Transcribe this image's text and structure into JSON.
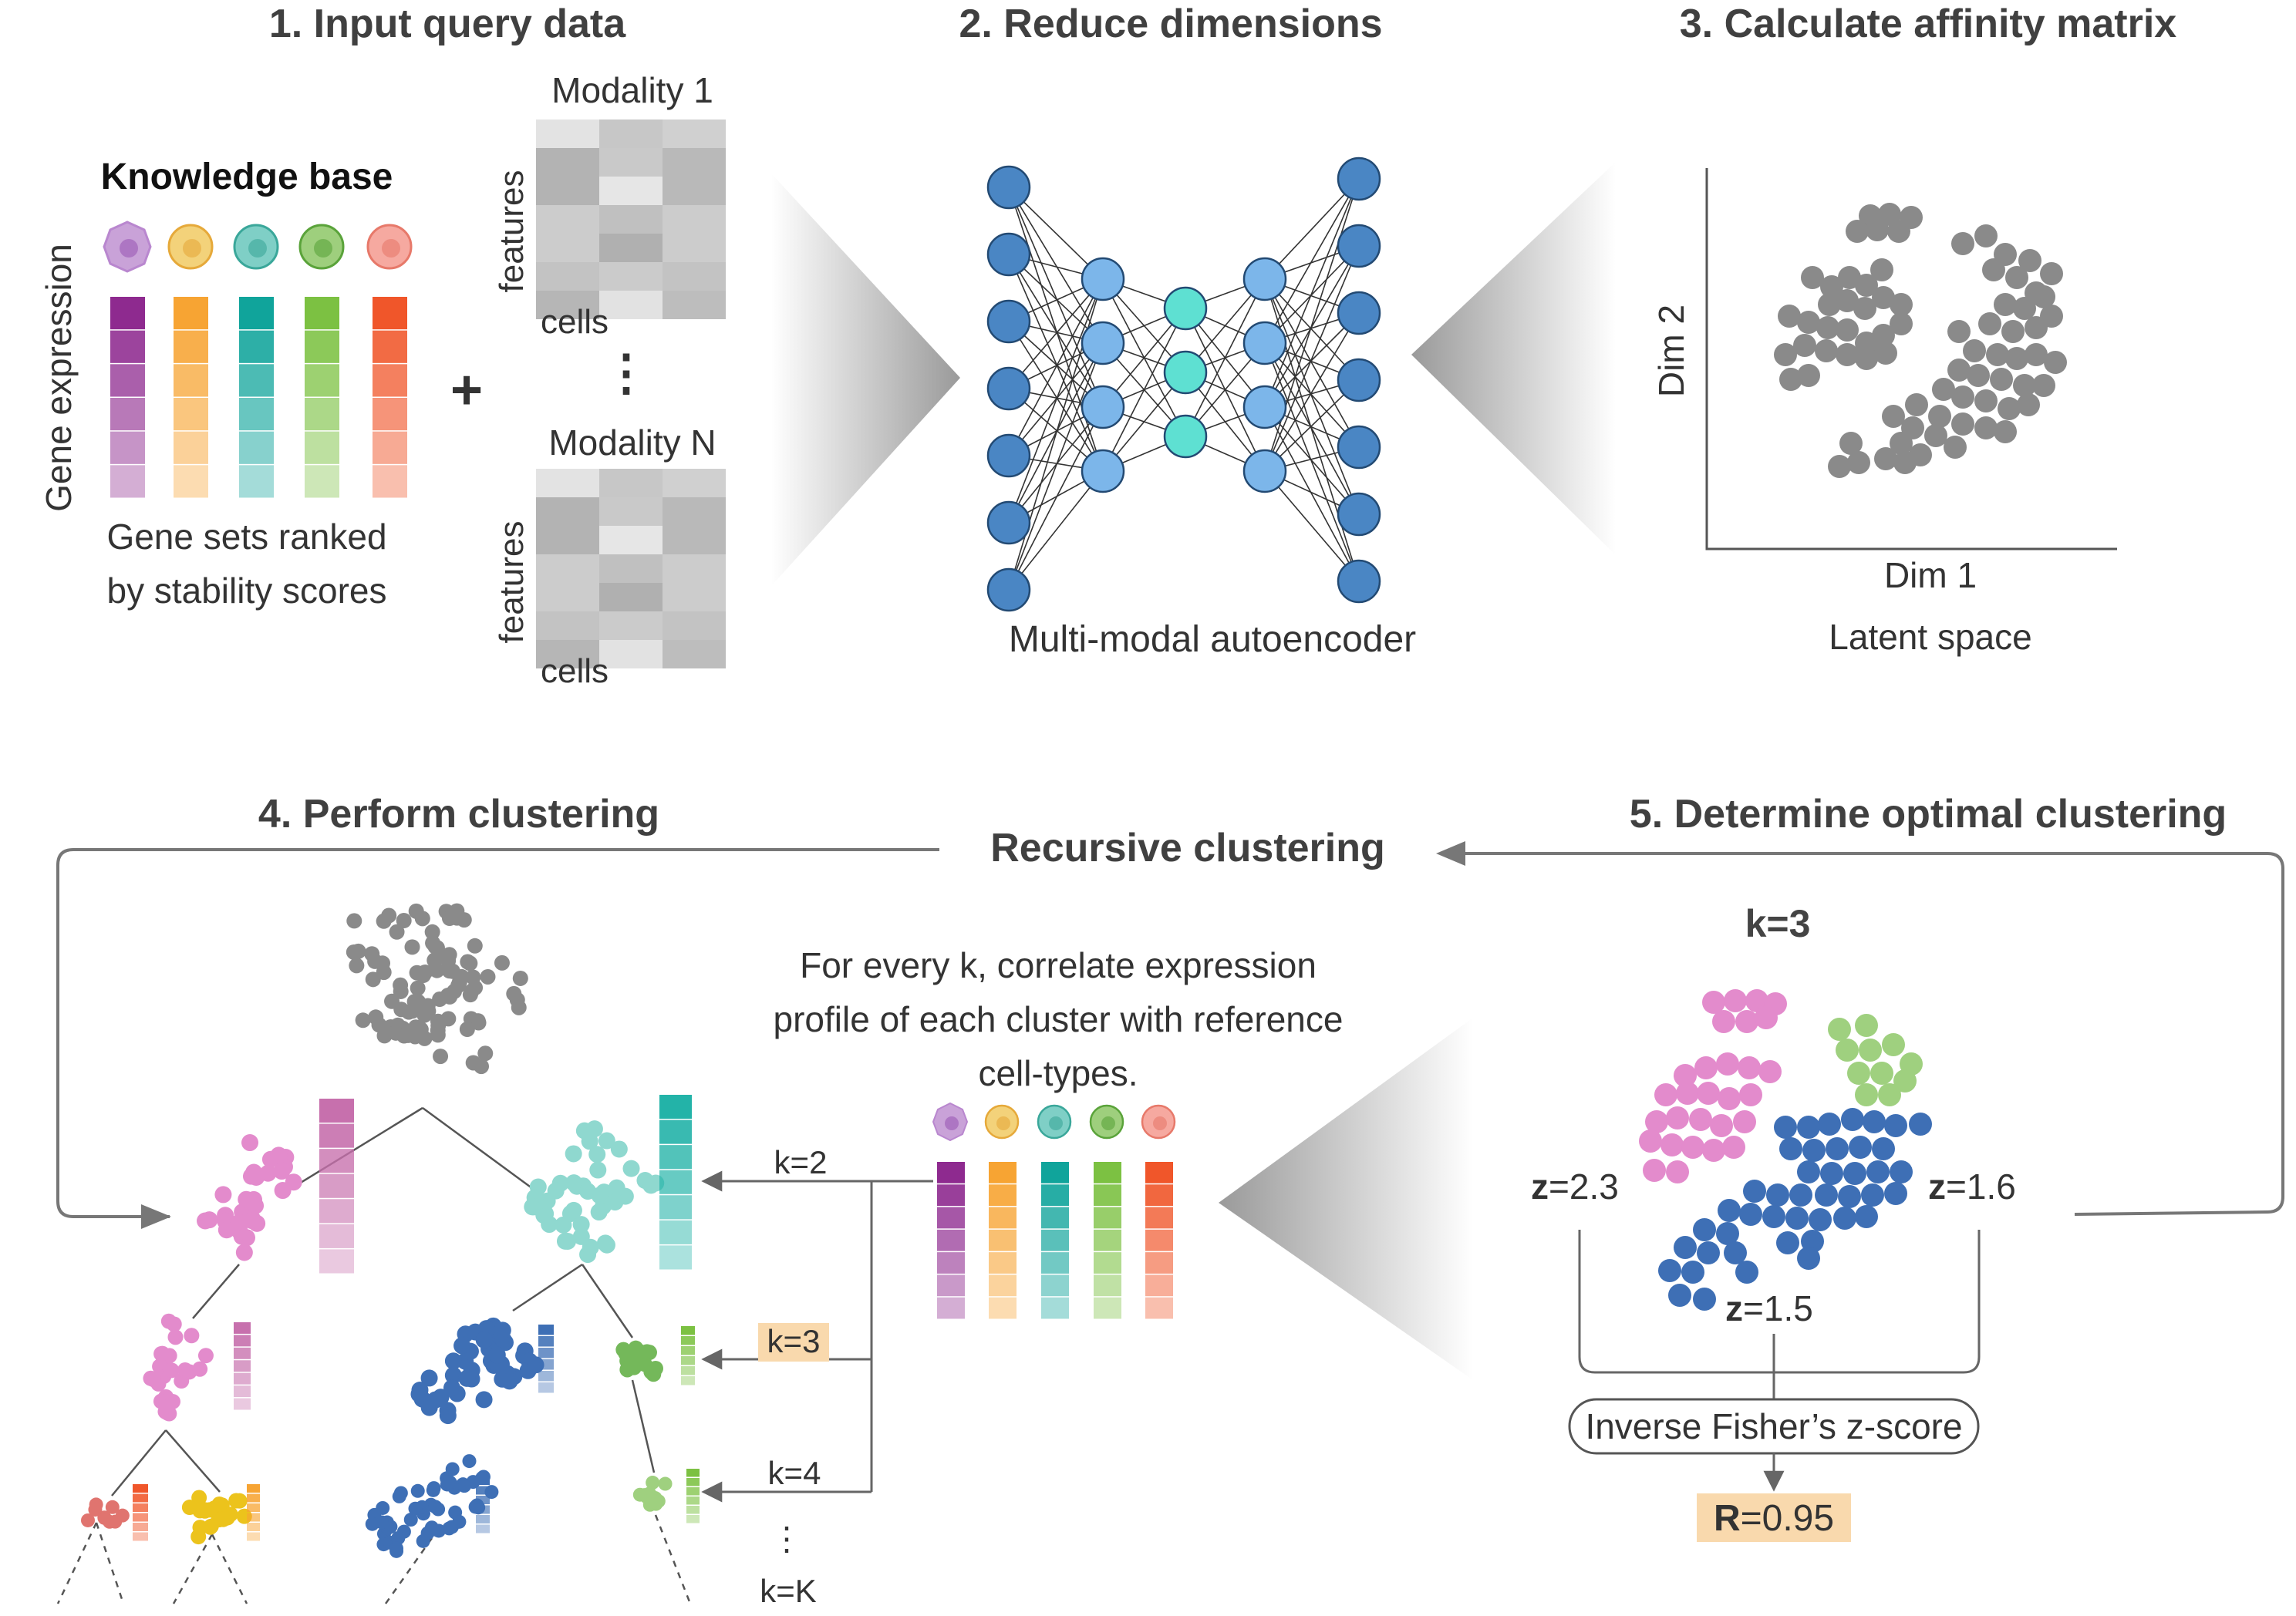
{
  "steps": {
    "s1": "1.  Input query data",
    "s2": "2.  Reduce dimensions",
    "s3": "3.  Calculate affinity matrix",
    "s4": "4.  Perform clustering",
    "s5": "5.  Determine optimal clustering"
  },
  "input": {
    "knowledge_base": "Knowledge base",
    "gene_expression": "Gene expression",
    "gene_sets_1": "Gene sets ranked",
    "gene_sets_2": "by stability scores",
    "plus": "+",
    "modality_1": "Modality 1",
    "modality_n": "Modality N",
    "features": "features",
    "cells": "cells",
    "vdots": "⋮"
  },
  "autoencoder": {
    "caption": "Multi-modal autoencoder"
  },
  "latent": {
    "dim1": "Dim 1",
    "dim2": "Dim 2",
    "caption": "Latent space"
  },
  "clustering": {
    "recursive": "Recursive clustering",
    "correlate_1": "For every k, correlate expression",
    "correlate_2": "profile of each cluster with reference",
    "correlate_3": "cell-types.",
    "k2": "k=2",
    "k3": "k=3",
    "k4": "k=4",
    "kdots": "⋮",
    "kK": "k=K"
  },
  "optimal": {
    "k": "k=3",
    "z_a_sym": "z",
    "z_a_val": "=2.3",
    "z_b_sym": "z",
    "z_b_val": "=1.6",
    "z_c_sym": "z",
    "z_c_val": "=1.5",
    "fisher": "Inverse Fisher’s z-score",
    "r_sym": "R",
    "r_val": "=0.95"
  },
  "colors": {
    "purple": "#8e2a8f",
    "orange": "#f7a433",
    "teal": "#10a49b",
    "green": "#7cc142",
    "red": "#f0562a",
    "gray_dots": "#8a8a8a",
    "pink": "#e38bcc",
    "light_green": "#9fd07f",
    "blue": "#3e6fb5",
    "yellow": "#ecc31c",
    "coral": "#e0746f",
    "node_dark": "#4a86c4",
    "node_light": "#7cb6ea",
    "node_cyan": "#5ee0d2",
    "highlight": "#f9d9ad"
  }
}
